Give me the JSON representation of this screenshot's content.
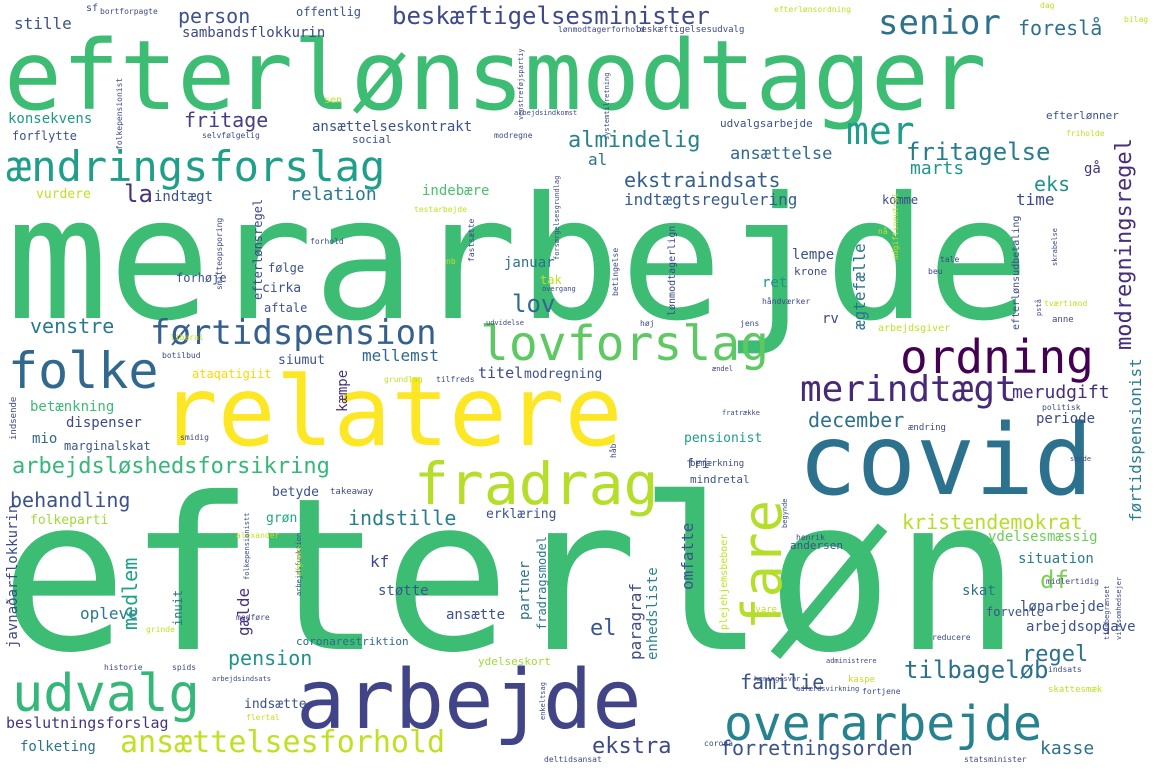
{
  "words": [
    {
      "text": "efterløn",
      "color": "#3dbc74"
    },
    {
      "text": "merarbejde",
      "color": "#3dbc74"
    },
    {
      "text": "efterlønsmodtager",
      "color": "#3dbc74"
    },
    {
      "text": "relatere",
      "color": "#fde725"
    },
    {
      "text": "covid",
      "color": "#2c728e"
    },
    {
      "text": "arbejde",
      "color": "#414487"
    },
    {
      "text": "ændringsforslag",
      "color": "#1f9e89"
    },
    {
      "text": "udvalg",
      "color": "#35b779"
    },
    {
      "text": "overarbejde",
      "color": "#26828e"
    },
    {
      "text": "fradrag",
      "color": "#b5de2b"
    },
    {
      "text": "lovforslag",
      "color": "#5ec962"
    },
    {
      "text": "ordning",
      "color": "#440154"
    },
    {
      "text": "førtidspension",
      "color": "#355f8d"
    },
    {
      "text": "folke",
      "color": "#31688e"
    },
    {
      "text": "fare",
      "color": "#b5de2b"
    },
    {
      "text": "merindtægt",
      "color": "#482878"
    },
    {
      "text": "beskæftigelsesminister",
      "color": "#3e4989"
    },
    {
      "text": "ansættelsesforhold",
      "color": "#c2df23"
    },
    {
      "text": "senior",
      "color": "#2c728e"
    },
    {
      "text": "mer",
      "color": "#1f9e89"
    },
    {
      "text": "modregningsregel",
      "color": "#472d7b"
    },
    {
      "text": "kristendemokrat",
      "color": "#b5de2b"
    },
    {
      "text": "arbejdsløshedsforsikring",
      "color": "#35b779"
    },
    {
      "text": "tilbageløb",
      "color": "#2d708e"
    },
    {
      "text": "almindelig",
      "color": "#26828e"
    },
    {
      "text": "fritagelse",
      "color": "#287c8e"
    },
    {
      "text": "ekstraindsats",
      "color": "#355f8d"
    },
    {
      "text": "indstille",
      "color": "#277f8e"
    },
    {
      "text": "forretningsorden",
      "color": "#3b528b"
    },
    {
      "text": "beslutningsforslag",
      "color": "#46337e"
    },
    {
      "text": "behandling",
      "color": "#3b528b"
    },
    {
      "text": "venstre",
      "color": "#2a788e"
    },
    {
      "text": "person",
      "color": "#3b528b"
    },
    {
      "text": "foreslå",
      "color": "#2c728e"
    },
    {
      "text": "fritage",
      "color": "#433e85"
    },
    {
      "text": "relation",
      "color": "#2a788e"
    },
    {
      "text": "december",
      "color": "#2c728e"
    },
    {
      "text": "merudgift",
      "color": "#472d7b"
    },
    {
      "text": "familie",
      "color": "#3b528b"
    },
    {
      "text": "ekstra",
      "color": "#3e4989"
    },
    {
      "text": "pension",
      "color": "#20928c"
    },
    {
      "text": "regel",
      "color": "#2d708e"
    },
    {
      "text": "medlem",
      "color": "#1fa088"
    },
    {
      "text": "lov",
      "color": "#31688e"
    },
    {
      "text": "df",
      "color": "#7ad151"
    },
    {
      "text": "el",
      "color": "#39568c"
    },
    {
      "text": "eks",
      "color": "#21918c"
    },
    {
      "text": "marts",
      "color": "#1f988b"
    },
    {
      "text": "ansættelse",
      "color": "#31688e"
    },
    {
      "text": "førtidspensionist",
      "color": "#287c8e"
    },
    {
      "text": "indtægtsregulering",
      "color": "#365c8d"
    },
    {
      "text": "sambandsflokkurin",
      "color": "#3e4989"
    },
    {
      "text": "ansættelseskontrakt",
      "color": "#3b528b"
    },
    {
      "text": "konsekvens",
      "color": "#1f988b"
    },
    {
      "text": "indtægt",
      "color": "#3b528b"
    },
    {
      "text": "la",
      "color": "#46327e"
    },
    {
      "text": "mellemst",
      "color": "#31688e"
    },
    {
      "text": "titel",
      "color": "#3e4989"
    },
    {
      "text": "modregning",
      "color": "#3b528b"
    },
    {
      "text": "betænkning",
      "color": "#3bbb75"
    },
    {
      "text": "dispenser",
      "color": "#3e4989"
    },
    {
      "text": "mio",
      "color": "#31688e"
    },
    {
      "text": "marginalskat",
      "color": "#39568c"
    },
    {
      "text": "pensionist",
      "color": "#1f9e89"
    },
    {
      "text": "ydelsesmæssig",
      "color": "#6ccd5a"
    },
    {
      "text": "situation",
      "color": "#287c8e"
    },
    {
      "text": "lønarbejde",
      "color": "#3b528b"
    },
    {
      "text": "arbejdsopgave",
      "color": "#3b528b"
    },
    {
      "text": "omfatte",
      "color": "#3b528b"
    },
    {
      "text": "paragraf",
      "color": "#3e4989"
    },
    {
      "text": "partner",
      "color": "#2c728e"
    },
    {
      "text": "enhedsliste",
      "color": "#26828e"
    },
    {
      "text": "fradragsmodel",
      "color": "#2a788e"
    },
    {
      "text": "ansætte",
      "color": "#3b528b"
    },
    {
      "text": "støtte",
      "color": "#38588c"
    },
    {
      "text": "kf",
      "color": "#3e4989"
    },
    {
      "text": "opleve",
      "color": "#2a788e"
    },
    {
      "text": "gælde",
      "color": "#46327e"
    },
    {
      "text": "inuit",
      "color": "#2c728e"
    },
    {
      "text": "folkeparti",
      "color": "#a0da39"
    },
    {
      "text": "betyde",
      "color": "#3b528b"
    },
    {
      "text": "grøn",
      "color": "#22a884"
    },
    {
      "text": "erklæring",
      "color": "#3b528b"
    },
    {
      "text": "andersen",
      "color": "#3b528b"
    },
    {
      "text": "lempe",
      "color": "#3b528b"
    },
    {
      "text": "ægtefælle",
      "color": "#2c728e"
    },
    {
      "text": "rv",
      "color": "#3e4989"
    },
    {
      "text": "ret",
      "color": "#21918c"
    },
    {
      "text": "krone",
      "color": "#3e4989"
    },
    {
      "text": "aftale",
      "color": "#3b528b"
    },
    {
      "text": "cirka",
      "color": "#3b528b"
    },
    {
      "text": "januar",
      "color": "#2c728e"
    },
    {
      "text": "følge",
      "color": "#3b528b"
    },
    {
      "text": "siumut",
      "color": "#3b528b"
    },
    {
      "text": "kæmpe",
      "color": "#46327e"
    },
    {
      "text": "ataqatigiit",
      "color": "#ffd700"
    },
    {
      "text": "fri",
      "color": "#39568c"
    },
    {
      "text": "mindretal",
      "color": "#3b528b"
    },
    {
      "text": "time",
      "color": "#3e4989"
    },
    {
      "text": "komme",
      "color": "#3e4989"
    },
    {
      "text": "kasse",
      "color": "#2c728e"
    },
    {
      "text": "periode",
      "color": "#3e4989"
    },
    {
      "text": "skat",
      "color": "#2c728e"
    },
    {
      "text": "forvente",
      "color": "#3b528b"
    },
    {
      "text": "coronarestriktion",
      "color": "#31688e"
    },
    {
      "text": "ydelseskort",
      "color": "#a0da39"
    },
    {
      "text": "indsætte",
      "color": "#3b528b"
    },
    {
      "text": "folketing",
      "color": "#2c728e"
    },
    {
      "text": "forflytte",
      "color": "#3b528b"
    },
    {
      "text": "vurdere",
      "color": "#c2df23"
    },
    {
      "text": "stille",
      "color": "#3b528b"
    },
    {
      "text": "offentlig",
      "color": "#3b528b"
    },
    {
      "text": "social",
      "color": "#3b528b"
    },
    {
      "text": "udvalgsarbejde",
      "color": "#3b528b"
    },
    {
      "text": "efterlønner",
      "color": "#3b528b"
    },
    {
      "text": "al",
      "color": "#2c728e"
    },
    {
      "text": "indebære",
      "color": "#4ac16d"
    },
    {
      "text": "tak",
      "color": "#c2df23"
    },
    {
      "text": "gå",
      "color": "#46327e"
    },
    {
      "text": "forhøje",
      "color": "#3b528b"
    },
    {
      "text": "javnaðarflokkurin",
      "color": "#3e4989"
    },
    {
      "text": "dag",
      "color": "#c2df23"
    },
    {
      "text": "bilag",
      "color": "#c2df23"
    },
    {
      "text": "sen",
      "color": "#c2df23"
    },
    {
      "text": "bortforpagte",
      "color": "#3e4989"
    },
    {
      "text": "lønmodtagerforhold",
      "color": "#3e4989"
    },
    {
      "text": "beskæftigelsesudvalg",
      "color": "#3e4989"
    },
    {
      "text": "efterlønsordning",
      "color": "#c2df23"
    },
    {
      "text": "folkepensionist",
      "color": "#3e4989"
    },
    {
      "text": "selvfølgelig",
      "color": "#3e4989"
    },
    {
      "text": "modregne",
      "color": "#3e4989"
    },
    {
      "text": "systemtilretning",
      "color": "#3e4989"
    },
    {
      "text": "udgiftsneutral",
      "color": "#c2df23"
    },
    {
      "text": "testarbejde",
      "color": "#c2df23"
    },
    {
      "text": "fastsætte",
      "color": "#3e4989"
    },
    {
      "text": "friholde",
      "color": "#c2df23"
    },
    {
      "text": "arbejdsindkomst",
      "color": "#3e4989"
    },
    {
      "text": "efterlønsudbetaling",
      "color": "#3e4989"
    },
    {
      "text": "efterlønsregel",
      "color": "#3e4989"
    },
    {
      "text": "forhold",
      "color": "#3e4989"
    },
    {
      "text": "nb",
      "color": "#c2df23"
    },
    {
      "text": "nå",
      "color": "#c2df23"
    },
    {
      "text": "tale",
      "color": "#3e4989"
    },
    {
      "text": "beu",
      "color": "#3e4989"
    },
    {
      "text": "overgang",
      "color": "#3e4989"
    },
    {
      "text": "håndværker",
      "color": "#3e4989"
    },
    {
      "text": "udvidelse",
      "color": "#3e4989"
    },
    {
      "text": "høj",
      "color": "#3e4989"
    },
    {
      "text": "jens",
      "color": "#3e4989"
    },
    {
      "text": "anne",
      "color": "#3e4989"
    },
    {
      "text": "tværtimod",
      "color": "#c2df23"
    },
    {
      "text": "liberal",
      "color": "#c2df23"
    },
    {
      "text": "botilbud",
      "color": "#3e4989"
    },
    {
      "text": "grundlag",
      "color": "#c2df23"
    },
    {
      "text": "tilfreds",
      "color": "#3e4989"
    },
    {
      "text": "ændel",
      "color": "#3e4989"
    },
    {
      "text": "arbejdsgiver",
      "color": "#c2df23"
    },
    {
      "text": "politisk",
      "color": "#3e4989"
    },
    {
      "text": "fratrække",
      "color": "#3e4989"
    },
    {
      "text": "ændring",
      "color": "#3e4989"
    },
    {
      "text": "indsende",
      "color": "#3e4989"
    },
    {
      "text": "smidig",
      "color": "#3e4989"
    },
    {
      "text": "håb",
      "color": "#3e4989"
    },
    {
      "text": "takeaway",
      "color": "#3e4989"
    },
    {
      "text": "bemærkning",
      "color": "#3e4989"
    },
    {
      "text": "sende",
      "color": "#3e4989"
    },
    {
      "text": "alexander",
      "color": "#c2df23"
    },
    {
      "text": "henrik",
      "color": "#3e4989"
    },
    {
      "text": "midlertidig",
      "color": "#3e4989"
    },
    {
      "text": "svare",
      "color": "#c2df23"
    },
    {
      "text": "reducere",
      "color": "#3e4989"
    },
    {
      "text": "historie",
      "color": "#3e4989"
    },
    {
      "text": "spids",
      "color": "#3e4989"
    },
    {
      "text": "arbejdsindsats",
      "color": "#3e4989"
    },
    {
      "text": "grinde",
      "color": "#c2df23"
    },
    {
      "text": "medføre",
      "color": "#3e4989"
    },
    {
      "text": "flertal",
      "color": "#c2df23"
    },
    {
      "text": "corona",
      "color": "#3e4989"
    },
    {
      "text": "deltidsansat",
      "color": "#3e4989"
    },
    {
      "text": "statsminister",
      "color": "#3e4989"
    },
    {
      "text": "administrere",
      "color": "#3e4989"
    },
    {
      "text": "indsats",
      "color": "#3e4989"
    },
    {
      "text": "kaspe",
      "color": "#c2df23"
    },
    {
      "text": "skattesmæk",
      "color": "#c2df23"
    },
    {
      "text": "adfærdsvirkning",
      "color": "#3e4989"
    },
    {
      "text": "fortjene",
      "color": "#3e4989"
    },
    {
      "text": "hæringssvar",
      "color": "#3e4989"
    },
    {
      "text": "plejehjemsbeboer",
      "color": "#c2df23"
    },
    {
      "text": "lønmodtagerlign",
      "color": "#3e4989"
    },
    {
      "text": "betingelse",
      "color": "#3e4989"
    },
    {
      "text": "forsørgelsesgrundlag",
      "color": "#3e4989"
    },
    {
      "text": "virksomhedsejer",
      "color": "#3e4989"
    },
    {
      "text": "smitteopsporing",
      "color": "#3e4989"
    },
    {
      "text": "enkeltsag",
      "color": "#3e4989"
    },
    {
      "text": "arbejdsfunktion",
      "color": "#3e4989"
    },
    {
      "text": "folkepensionistt",
      "color": "#3e4989"
    },
    {
      "text": "afgræse",
      "color": "#c2df23"
    },
    {
      "text": "sf",
      "color": "#3e4989"
    },
    {
      "text": "begynde",
      "color": "#3e4989"
    },
    {
      "text": "pstå",
      "color": "#3e4989"
    },
    {
      "text": "skrabelse",
      "color": "#3e4989"
    },
    {
      "text": "venstreføjspartiy",
      "color": "#3e4989"
    },
    {
      "text": "tidsbegrænset",
      "color": "#3e4989"
    }
  ]
}
